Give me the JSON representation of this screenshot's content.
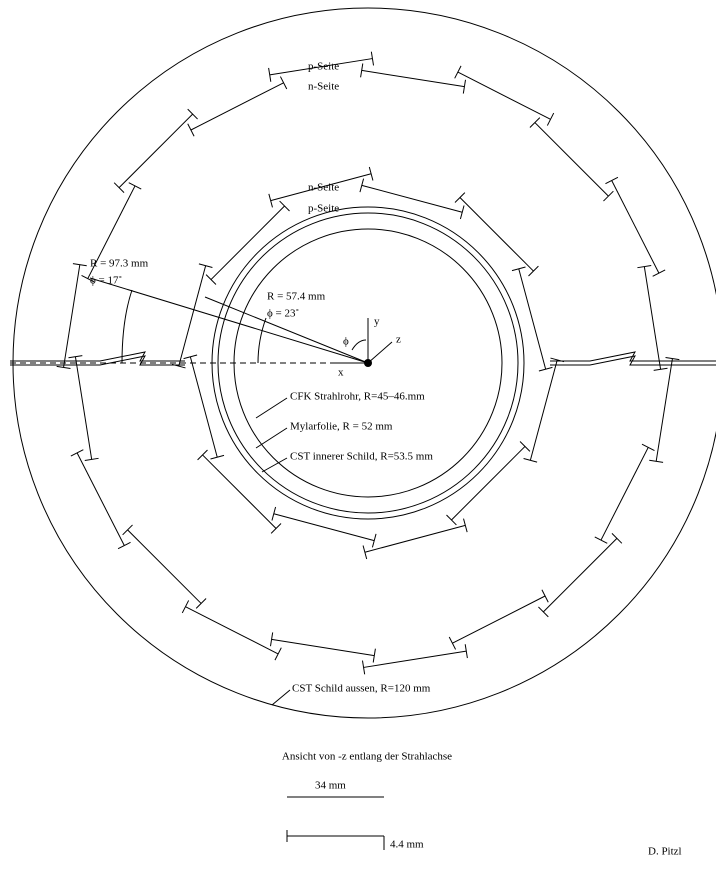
{
  "labels": {
    "outer_p": "p-Seite",
    "outer_n": "n-Seite",
    "inner_n": "n-Seite",
    "inner_p": "p-Seite",
    "r_outer": "R = 97.3 mm",
    "phi_outer": "ϕ = 17˚",
    "r_inner": "R = 57.4 mm",
    "phi_inner": "ϕ = 23˚",
    "axis_phi": "ϕ",
    "axis_y": "y",
    "axis_z": "z",
    "axis_x": "x",
    "beampipe": "CFK Strahlrohr, R=45–46.mm",
    "mylar": "Mylarfolie, R = 52 mm",
    "inner_shield": "CST innerer Schild, R=53.5 mm",
    "outer_shield": "CST Schild aussen, R=120 mm",
    "caption": "Ansicht von -z entlang der Strahlachse",
    "scale_x": "34 mm",
    "scale_y": "4.4 mm",
    "author": "D. Pitzl"
  }
}
